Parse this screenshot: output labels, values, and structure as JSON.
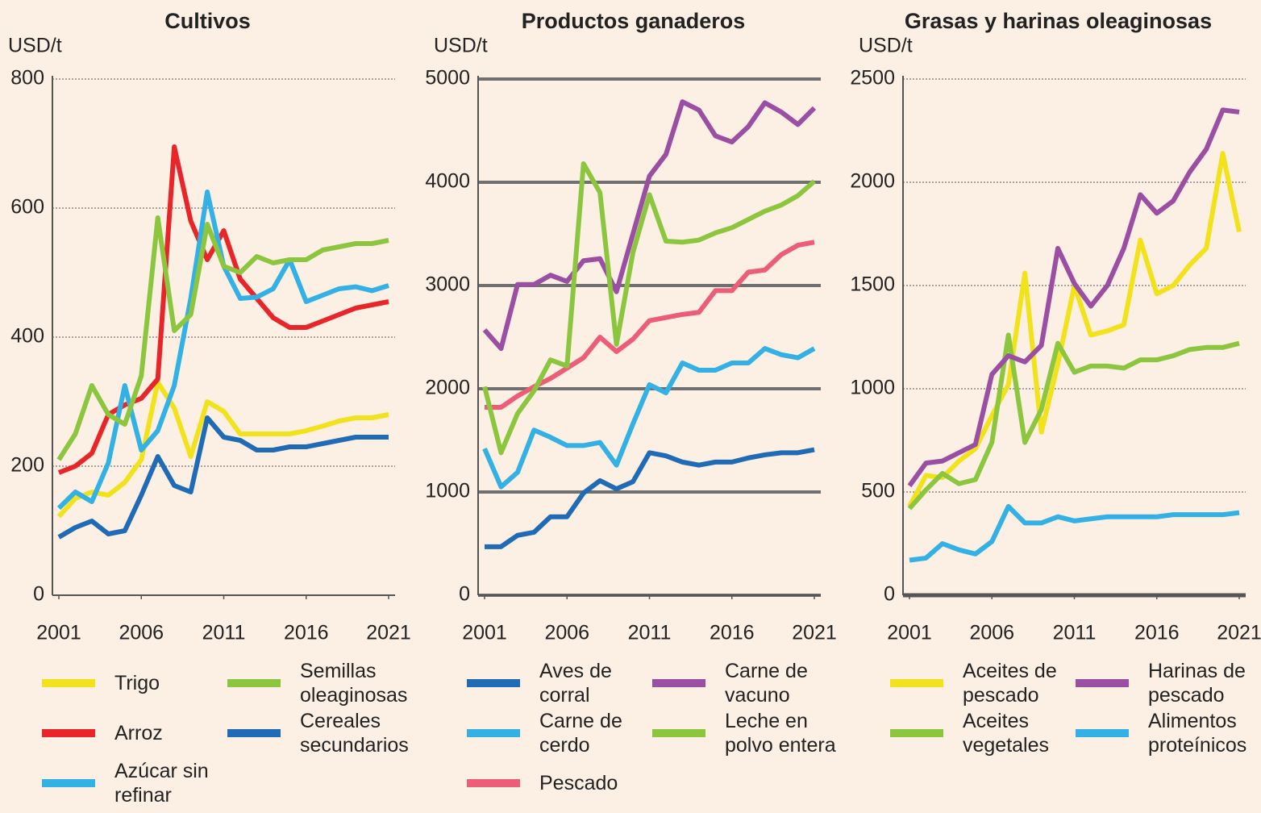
{
  "chart_data": [
    {
      "type": "line",
      "title": "Cultivos",
      "y_label": "USD/t",
      "x": [
        2001,
        2002,
        2003,
        2004,
        2005,
        2006,
        2007,
        2008,
        2009,
        2010,
        2011,
        2012,
        2013,
        2014,
        2015,
        2016,
        2017,
        2018,
        2019,
        2020,
        2021
      ],
      "xlim": [
        2001,
        2021
      ],
      "xticks": [
        2001,
        2006,
        2011,
        2016,
        2021
      ],
      "ylim": [
        0,
        800
      ],
      "yticks": [
        0,
        200,
        400,
        600,
        800
      ],
      "grid": true,
      "grid_style": "dotted",
      "series": [
        {
          "name": "Trigo",
          "color": "#f2e21b",
          "values": [
            122,
            150,
            160,
            155,
            175,
            210,
            330,
            290,
            215,
            300,
            285,
            250,
            250,
            250,
            250,
            255,
            262,
            270,
            275,
            275,
            280
          ]
        },
        {
          "name": "Arroz",
          "color": "#e8262a",
          "values": [
            190,
            200,
            220,
            280,
            295,
            305,
            335,
            695,
            580,
            520,
            565,
            490,
            460,
            430,
            415,
            415,
            425,
            435,
            445,
            450,
            455
          ]
        },
        {
          "name": "Azúcar sin refinar",
          "color": "#33b1e4",
          "values": [
            135,
            160,
            145,
            205,
            325,
            225,
            255,
            325,
            460,
            625,
            510,
            460,
            462,
            475,
            520,
            455,
            465,
            475,
            478,
            472,
            480
          ]
        },
        {
          "name": "Semillas oleaginosas",
          "color": "#8cc63f",
          "values": [
            210,
            250,
            325,
            280,
            265,
            340,
            585,
            410,
            435,
            575,
            510,
            500,
            525,
            515,
            520,
            520,
            535,
            540,
            545,
            545,
            550
          ]
        },
        {
          "name": "Cereales secundarios",
          "color": "#1f6bb5",
          "values": [
            90,
            105,
            115,
            95,
            100,
            155,
            215,
            170,
            160,
            275,
            245,
            240,
            225,
            225,
            230,
            230,
            235,
            240,
            245,
            245,
            245
          ]
        }
      ]
    },
    {
      "type": "line",
      "title": "Productos ganaderos",
      "y_label": "USD/t",
      "x": [
        2001,
        2002,
        2003,
        2004,
        2005,
        2006,
        2007,
        2008,
        2009,
        2010,
        2011,
        2012,
        2013,
        2014,
        2015,
        2016,
        2017,
        2018,
        2019,
        2020,
        2021
      ],
      "xlim": [
        2001,
        2021
      ],
      "xticks": [
        2001,
        2006,
        2011,
        2016,
        2021
      ],
      "ylim": [
        0,
        5000
      ],
      "yticks": [
        0,
        1000,
        2000,
        3000,
        4000,
        5000
      ],
      "grid": true,
      "grid_style": "solid",
      "series": [
        {
          "name": "Aves de corral",
          "color": "#1f6bb5",
          "values": [
            470,
            470,
            580,
            610,
            760,
            760,
            990,
            1110,
            1030,
            1100,
            1380,
            1350,
            1290,
            1260,
            1290,
            1290,
            1330,
            1360,
            1380,
            1380,
            1410
          ]
        },
        {
          "name": "Carne de cerdo",
          "color": "#33b1e4",
          "values": [
            1420,
            1050,
            1190,
            1600,
            1530,
            1450,
            1450,
            1480,
            1260,
            1660,
            2040,
            1960,
            2250,
            2180,
            2180,
            2250,
            2250,
            2390,
            2330,
            2300,
            2390
          ]
        },
        {
          "name": "Pescado",
          "color": "#ec5d78",
          "values": [
            1820,
            1820,
            1930,
            2020,
            2100,
            2200,
            2300,
            2500,
            2360,
            2480,
            2660,
            2690,
            2720,
            2740,
            2950,
            2950,
            3130,
            3150,
            3300,
            3390,
            3420
          ]
        },
        {
          "name": "Carne de vacuno",
          "color": "#9b4fa3",
          "values": [
            2570,
            2390,
            3010,
            3010,
            3100,
            3040,
            3240,
            3260,
            2940,
            3500,
            4060,
            4270,
            4780,
            4700,
            4450,
            4390,
            4540,
            4770,
            4680,
            4560,
            4720
          ]
        },
        {
          "name": "Leche en polvo entera",
          "color": "#8cc63f",
          "values": [
            2020,
            1380,
            1760,
            1980,
            2280,
            2220,
            4180,
            3900,
            2430,
            3320,
            3880,
            3430,
            3420,
            3440,
            3510,
            3560,
            3640,
            3720,
            3780,
            3870,
            4010
          ]
        }
      ]
    },
    {
      "type": "line",
      "title": "Grasas y harinas oleaginosas",
      "y_label": "USD/t",
      "x": [
        2001,
        2002,
        2003,
        2004,
        2005,
        2006,
        2007,
        2008,
        2009,
        2010,
        2011,
        2012,
        2013,
        2014,
        2015,
        2016,
        2017,
        2018,
        2019,
        2020,
        2021
      ],
      "xlim": [
        2001,
        2021
      ],
      "xticks": [
        2001,
        2006,
        2011,
        2016,
        2021
      ],
      "ylim": [
        0,
        2500
      ],
      "yticks": [
        0,
        500,
        1000,
        1500,
        2000,
        2500
      ],
      "grid": true,
      "grid_style": "dotted",
      "series": [
        {
          "name": "Aceites de pescado",
          "color": "#f2e21b",
          "values": [
            430,
            580,
            570,
            650,
            710,
            870,
            1020,
            1560,
            790,
            1120,
            1500,
            1260,
            1280,
            1310,
            1720,
            1460,
            1500,
            1600,
            1680,
            2140,
            1760
          ]
        },
        {
          "name": "Aceites vegetales",
          "color": "#8cc63f",
          "values": [
            420,
            510,
            590,
            540,
            560,
            740,
            1260,
            740,
            900,
            1220,
            1080,
            1110,
            1110,
            1100,
            1140,
            1140,
            1160,
            1190,
            1200,
            1200,
            1220
          ]
        },
        {
          "name": "Harinas de pescado",
          "color": "#9b4fa3",
          "values": [
            530,
            640,
            650,
            690,
            730,
            1070,
            1160,
            1130,
            1210,
            1680,
            1510,
            1400,
            1500,
            1680,
            1940,
            1850,
            1910,
            2050,
            2160,
            2350,
            2340
          ]
        },
        {
          "name": "Alimentos proteínicos",
          "color": "#33b1e4",
          "values": [
            170,
            180,
            250,
            220,
            200,
            260,
            430,
            350,
            350,
            380,
            360,
            370,
            380,
            380,
            380,
            380,
            390,
            390,
            390,
            390,
            400
          ]
        }
      ]
    }
  ]
}
